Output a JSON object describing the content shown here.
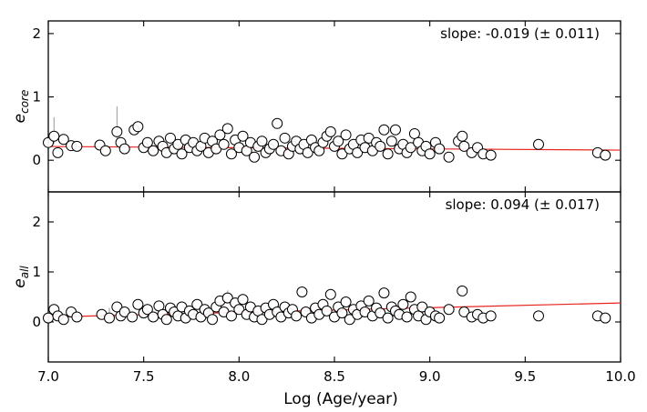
{
  "chart_data": {
    "type": "scatter",
    "xlabel": "Log (Age/year)",
    "xlim": [
      7.0,
      10.0
    ],
    "x_ticks": [
      "7.0",
      "7.5",
      "8.0",
      "8.5",
      "9.0",
      "9.5",
      "10.0"
    ],
    "x_tick_values": [
      7.0,
      7.5,
      8.0,
      8.5,
      9.0,
      9.5,
      10.0
    ],
    "grid": false,
    "panels": [
      {
        "ylabel_main": "e",
        "ylabel_sub": "core",
        "ylim": [
          -0.5,
          2.2
        ],
        "y_ticks": [
          "0",
          "1",
          "2"
        ],
        "y_tick_values": [
          0,
          1,
          2
        ],
        "annotation": "slope: -0.019 (± 0.011)",
        "fit": {
          "slope": -0.019,
          "intercept": 0.35
        },
        "points": [
          [
            7.0,
            0.28,
            0.0
          ],
          [
            7.03,
            0.38,
            0.3
          ],
          [
            7.05,
            0.12,
            0.0
          ],
          [
            7.08,
            0.33,
            0.0
          ],
          [
            7.12,
            0.23,
            0.0
          ],
          [
            7.15,
            0.22,
            0.0
          ],
          [
            7.27,
            0.24,
            0.0
          ],
          [
            7.3,
            0.15,
            0.0
          ],
          [
            7.36,
            0.45,
            0.4
          ],
          [
            7.38,
            0.28,
            0.0
          ],
          [
            7.4,
            0.18,
            0.0
          ],
          [
            7.45,
            0.48,
            0.0
          ],
          [
            7.47,
            0.53,
            0.0
          ],
          [
            7.5,
            0.2,
            0.0
          ],
          [
            7.52,
            0.28,
            0.0
          ],
          [
            7.55,
            0.15,
            0.0
          ],
          [
            7.58,
            0.3,
            0.0
          ],
          [
            7.6,
            0.22,
            0.0
          ],
          [
            7.62,
            0.12,
            0.0
          ],
          [
            7.64,
            0.35,
            0.0
          ],
          [
            7.66,
            0.18,
            0.0
          ],
          [
            7.68,
            0.25,
            0.0
          ],
          [
            7.7,
            0.1,
            0.0
          ],
          [
            7.72,
            0.32,
            0.0
          ],
          [
            7.74,
            0.2,
            0.0
          ],
          [
            7.76,
            0.28,
            0.0
          ],
          [
            7.78,
            0.15,
            0.0
          ],
          [
            7.8,
            0.22,
            0.0
          ],
          [
            7.82,
            0.35,
            0.0
          ],
          [
            7.84,
            0.12,
            0.0
          ],
          [
            7.86,
            0.3,
            0.0
          ],
          [
            7.88,
            0.18,
            0.0
          ],
          [
            7.9,
            0.4,
            0.0
          ],
          [
            7.92,
            0.25,
            0.0
          ],
          [
            7.94,
            0.5,
            0.0
          ],
          [
            7.96,
            0.1,
            0.0
          ],
          [
            7.98,
            0.32,
            0.0
          ],
          [
            8.0,
            0.2,
            0.0
          ],
          [
            8.02,
            0.38,
            0.0
          ],
          [
            8.04,
            0.15,
            0.0
          ],
          [
            8.06,
            0.28,
            0.0
          ],
          [
            8.08,
            0.05,
            0.0
          ],
          [
            8.1,
            0.22,
            0.0
          ],
          [
            8.12,
            0.3,
            0.0
          ],
          [
            8.14,
            0.12,
            0.0
          ],
          [
            8.16,
            0.18,
            0.0
          ],
          [
            8.18,
            0.25,
            0.0
          ],
          [
            8.2,
            0.58,
            0.0
          ],
          [
            8.22,
            0.15,
            0.0
          ],
          [
            8.24,
            0.35,
            0.0
          ],
          [
            8.26,
            0.1,
            0.0
          ],
          [
            8.28,
            0.22,
            0.0
          ],
          [
            8.3,
            0.3,
            0.0
          ],
          [
            8.32,
            0.18,
            0.0
          ],
          [
            8.34,
            0.25,
            0.0
          ],
          [
            8.36,
            0.12,
            0.0
          ],
          [
            8.38,
            0.32,
            0.0
          ],
          [
            8.4,
            0.2,
            0.0
          ],
          [
            8.42,
            0.15,
            0.0
          ],
          [
            8.44,
            0.28,
            0.0
          ],
          [
            8.46,
            0.38,
            0.0
          ],
          [
            8.48,
            0.45,
            0.0
          ],
          [
            8.5,
            0.22,
            0.0
          ],
          [
            8.52,
            0.3,
            0.0
          ],
          [
            8.54,
            0.1,
            0.0
          ],
          [
            8.56,
            0.4,
            0.0
          ],
          [
            8.58,
            0.18,
            0.0
          ],
          [
            8.6,
            0.25,
            0.0
          ],
          [
            8.62,
            0.12,
            0.0
          ],
          [
            8.64,
            0.32,
            0.0
          ],
          [
            8.66,
            0.2,
            0.0
          ],
          [
            8.68,
            0.35,
            0.0
          ],
          [
            8.7,
            0.15,
            0.0
          ],
          [
            8.72,
            0.28,
            0.0
          ],
          [
            8.74,
            0.22,
            0.0
          ],
          [
            8.76,
            0.48,
            0.0
          ],
          [
            8.78,
            0.1,
            0.0
          ],
          [
            8.8,
            0.3,
            0.0
          ],
          [
            8.82,
            0.48,
            0.0
          ],
          [
            8.84,
            0.18,
            0.0
          ],
          [
            8.86,
            0.25,
            0.0
          ],
          [
            8.88,
            0.12,
            0.0
          ],
          [
            8.9,
            0.2,
            0.0
          ],
          [
            8.92,
            0.42,
            0.0
          ],
          [
            8.94,
            0.28,
            0.0
          ],
          [
            8.96,
            0.15,
            0.0
          ],
          [
            8.98,
            0.22,
            0.0
          ],
          [
            9.0,
            0.1,
            0.0
          ],
          [
            9.03,
            0.28,
            0.0
          ],
          [
            9.05,
            0.18,
            0.0
          ],
          [
            9.1,
            0.05,
            0.0
          ],
          [
            9.15,
            0.3,
            0.0
          ],
          [
            9.17,
            0.38,
            0.0
          ],
          [
            9.18,
            0.22,
            0.0
          ],
          [
            9.22,
            0.12,
            0.0
          ],
          [
            9.25,
            0.2,
            0.0
          ],
          [
            9.28,
            0.1,
            0.0
          ],
          [
            9.32,
            0.08,
            0.0
          ],
          [
            9.57,
            0.25,
            0.0
          ],
          [
            9.88,
            0.12,
            0.0
          ],
          [
            9.92,
            0.08,
            0.0
          ]
        ]
      },
      {
        "ylabel_main": "e",
        "ylabel_sub": "all",
        "ylim": [
          -0.8,
          2.6
        ],
        "y_ticks": [
          "0",
          "1",
          "2"
        ],
        "y_tick_values": [
          0,
          1,
          2
        ],
        "annotation": "slope: 0.094 (± 0.017)",
        "fit": {
          "slope": 0.094,
          "intercept": -0.56
        },
        "points": [
          [
            7.0,
            0.08,
            0.0
          ],
          [
            7.03,
            0.25,
            0.0
          ],
          [
            7.05,
            0.12,
            0.0
          ],
          [
            7.08,
            0.05,
            0.0
          ],
          [
            7.12,
            0.2,
            0.0
          ],
          [
            7.15,
            0.1,
            0.0
          ],
          [
            7.28,
            0.15,
            0.0
          ],
          [
            7.32,
            0.08,
            0.2
          ],
          [
            7.36,
            0.3,
            0.0
          ],
          [
            7.38,
            0.12,
            0.0
          ],
          [
            7.4,
            0.2,
            0.0
          ],
          [
            7.44,
            0.1,
            0.0
          ],
          [
            7.47,
            0.35,
            0.0
          ],
          [
            7.5,
            0.18,
            0.0
          ],
          [
            7.52,
            0.25,
            0.0
          ],
          [
            7.55,
            0.1,
            0.0
          ],
          [
            7.58,
            0.32,
            0.0
          ],
          [
            7.6,
            0.15,
            0.0
          ],
          [
            7.62,
            0.05,
            0.0
          ],
          [
            7.64,
            0.28,
            0.0
          ],
          [
            7.66,
            0.2,
            0.0
          ],
          [
            7.68,
            0.12,
            0.0
          ],
          [
            7.7,
            0.3,
            0.0
          ],
          [
            7.72,
            0.08,
            0.0
          ],
          [
            7.74,
            0.22,
            0.0
          ],
          [
            7.76,
            0.15,
            0.0
          ],
          [
            7.78,
            0.35,
            0.0
          ],
          [
            7.8,
            0.1,
            0.0
          ],
          [
            7.82,
            0.25,
            0.0
          ],
          [
            7.84,
            0.18,
            0.0
          ],
          [
            7.86,
            0.05,
            0.0
          ],
          [
            7.88,
            0.3,
            0.0
          ],
          [
            7.9,
            0.42,
            0.0
          ],
          [
            7.92,
            0.2,
            0.0
          ],
          [
            7.94,
            0.48,
            0.15
          ],
          [
            7.96,
            0.12,
            0.0
          ],
          [
            7.98,
            0.38,
            0.0
          ],
          [
            8.0,
            0.25,
            0.0
          ],
          [
            8.02,
            0.45,
            0.0
          ],
          [
            8.04,
            0.15,
            0.0
          ],
          [
            8.06,
            0.3,
            0.0
          ],
          [
            8.08,
            0.1,
            0.0
          ],
          [
            8.1,
            0.22,
            0.0
          ],
          [
            8.12,
            0.05,
            0.0
          ],
          [
            8.14,
            0.28,
            0.0
          ],
          [
            8.16,
            0.15,
            0.0
          ],
          [
            8.18,
            0.35,
            0.0
          ],
          [
            8.2,
            0.2,
            0.0
          ],
          [
            8.22,
            0.1,
            0.0
          ],
          [
            8.24,
            0.3,
            0.0
          ],
          [
            8.26,
            0.18,
            0.0
          ],
          [
            8.28,
            0.25,
            0.0
          ],
          [
            8.3,
            0.12,
            0.0
          ],
          [
            8.33,
            0.6,
            0.0
          ],
          [
            8.35,
            0.2,
            0.0
          ],
          [
            8.38,
            0.08,
            0.0
          ],
          [
            8.4,
            0.28,
            0.0
          ],
          [
            8.42,
            0.15,
            0.0
          ],
          [
            8.44,
            0.35,
            0.0
          ],
          [
            8.46,
            0.22,
            0.0
          ],
          [
            8.48,
            0.55,
            0.0
          ],
          [
            8.5,
            0.1,
            0.0
          ],
          [
            8.52,
            0.3,
            0.0
          ],
          [
            8.54,
            0.18,
            0.0
          ],
          [
            8.56,
            0.4,
            0.0
          ],
          [
            8.58,
            0.05,
            0.0
          ],
          [
            8.6,
            0.25,
            0.0
          ],
          [
            8.62,
            0.15,
            0.0
          ],
          [
            8.64,
            0.32,
            0.0
          ],
          [
            8.66,
            0.2,
            0.0
          ],
          [
            8.68,
            0.42,
            0.0
          ],
          [
            8.7,
            0.12,
            0.0
          ],
          [
            8.72,
            0.28,
            0.0
          ],
          [
            8.74,
            0.18,
            0.0
          ],
          [
            8.76,
            0.58,
            0.0
          ],
          [
            8.78,
            0.08,
            0.0
          ],
          [
            8.8,
            0.3,
            0.0
          ],
          [
            8.82,
            0.22,
            0.0
          ],
          [
            8.84,
            0.15,
            0.0
          ],
          [
            8.86,
            0.35,
            0.0
          ],
          [
            8.88,
            0.1,
            0.0
          ],
          [
            8.9,
            0.5,
            0.0
          ],
          [
            8.92,
            0.25,
            0.0
          ],
          [
            8.94,
            0.12,
            0.0
          ],
          [
            8.96,
            0.3,
            0.0
          ],
          [
            8.98,
            0.05,
            0.0
          ],
          [
            9.0,
            0.2,
            0.0
          ],
          [
            9.03,
            0.12,
            0.0
          ],
          [
            9.05,
            0.08,
            0.0
          ],
          [
            9.1,
            0.25,
            0.0
          ],
          [
            9.17,
            0.62,
            0.0
          ],
          [
            9.18,
            0.2,
            0.0
          ],
          [
            9.22,
            0.1,
            0.0
          ],
          [
            9.25,
            0.15,
            0.0
          ],
          [
            9.28,
            0.08,
            0.0
          ],
          [
            9.32,
            0.12,
            0.0
          ],
          [
            9.57,
            0.12,
            0.0
          ],
          [
            9.88,
            0.12,
            0.0
          ],
          [
            9.92,
            0.08,
            0.0
          ]
        ]
      }
    ]
  }
}
